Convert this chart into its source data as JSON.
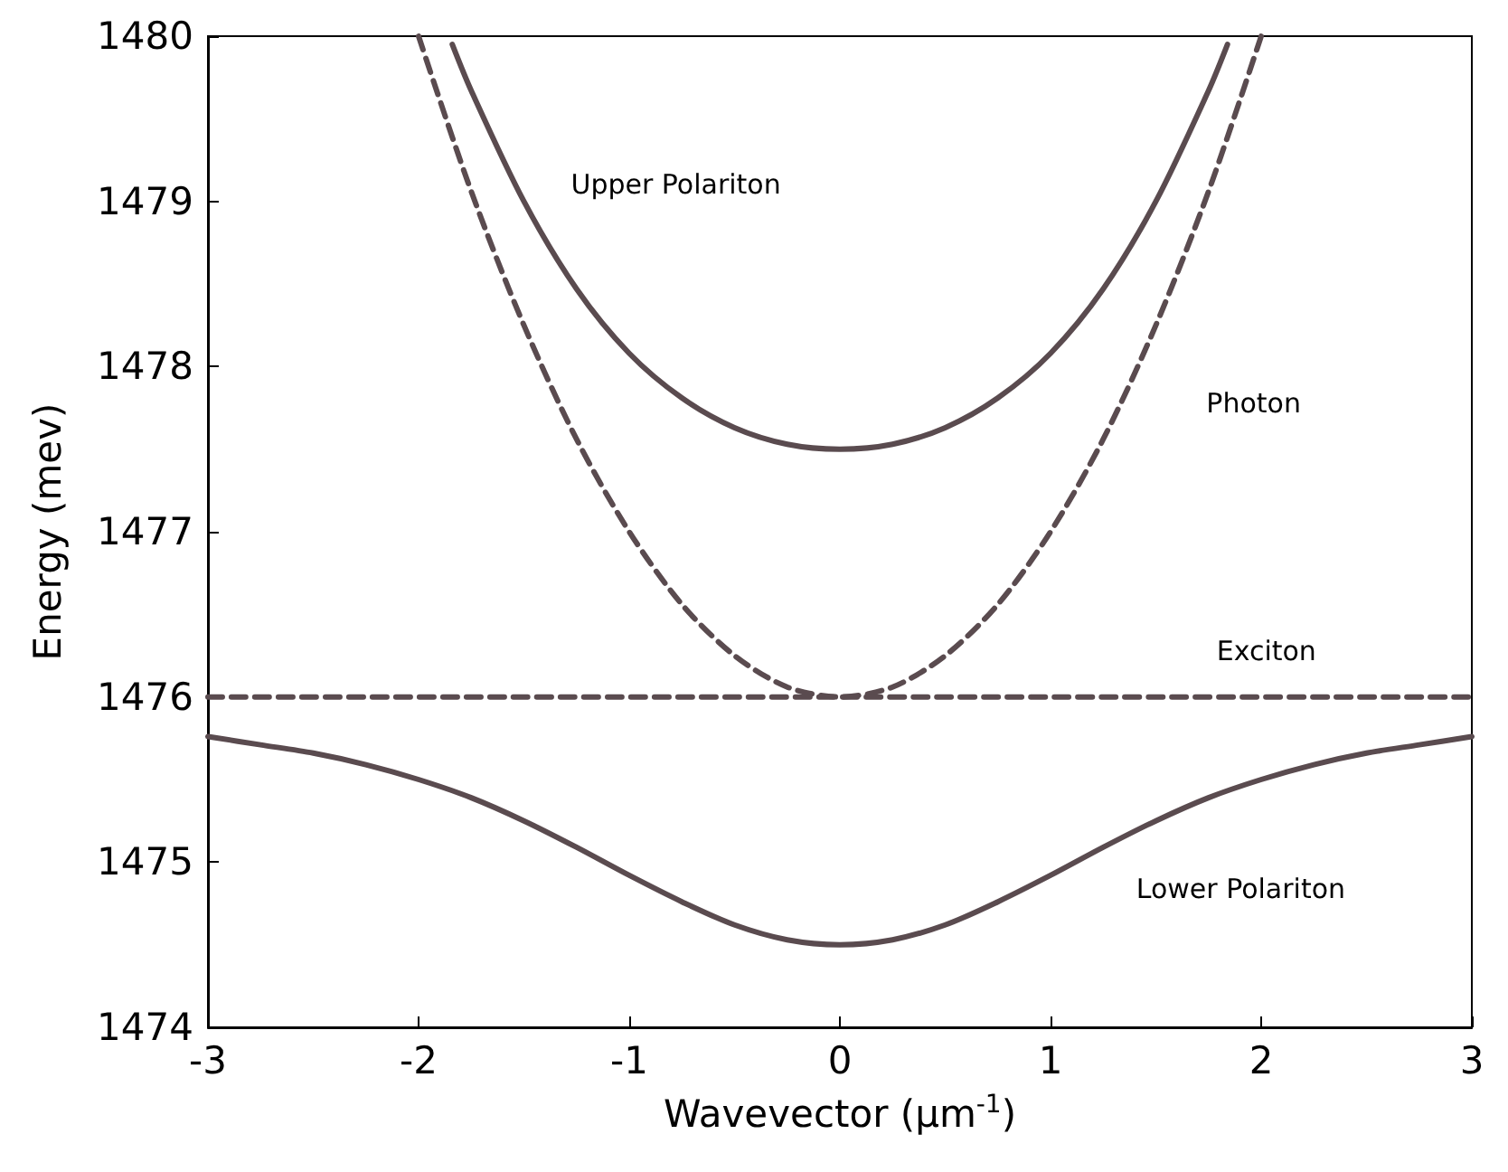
{
  "chart_data": {
    "type": "line",
    "xlabel": "Wavevector (μm$^{-1}$)",
    "ylabel": "Energy (mev)",
    "xlim": [
      -3,
      3
    ],
    "xticks": [
      -3,
      -2,
      -1,
      0,
      1,
      2,
      3
    ],
    "ylim": [
      1474,
      1480
    ],
    "yticks": [
      1474,
      1475,
      1476,
      1477,
      1478,
      1479,
      1480
    ],
    "grid": false,
    "legend": false,
    "series": [
      {
        "name": "Lower Polariton",
        "color": "#5a4b4f",
        "line_style": "solid",
        "x": [
          -3,
          -2.75,
          -2.5,
          -2.25,
          -2,
          -1.75,
          -1.5,
          -1.25,
          -1,
          -0.75,
          -0.5,
          -0.25,
          0,
          0.25,
          0.5,
          0.75,
          1,
          1.25,
          1.5,
          1.75,
          2,
          2.25,
          2.5,
          2.75,
          3
        ],
        "values": [
          1475.76,
          1475.71,
          1475.66,
          1475.59,
          1475.5,
          1475.39,
          1475.25,
          1475.09,
          1474.92,
          1474.76,
          1474.62,
          1474.53,
          1474.5,
          1474.53,
          1474.62,
          1474.76,
          1474.92,
          1475.09,
          1475.25,
          1475.39,
          1475.5,
          1475.59,
          1475.66,
          1475.71,
          1475.76
        ]
      },
      {
        "name": "Upper Polariton",
        "color": "#5a4b4f",
        "line_style": "solid",
        "x": [
          -1.84,
          -1.75,
          -1.5,
          -1.25,
          -1,
          -0.75,
          -0.5,
          -0.25,
          0,
          0.25,
          0.5,
          0.75,
          1,
          1.25,
          1.5,
          1.75,
          1.84
        ],
        "values": [
          1479.95,
          1479.67,
          1479.0,
          1478.47,
          1478.08,
          1477.81,
          1477.63,
          1477.53,
          1477.5,
          1477.53,
          1477.63,
          1477.81,
          1478.08,
          1478.47,
          1479.0,
          1479.67,
          1479.95
        ]
      },
      {
        "name": "Photon",
        "color": "#5a4b4f",
        "line_style": "dashed",
        "x": [
          -2,
          -1.75,
          -1.5,
          -1.25,
          -1,
          -0.75,
          -0.5,
          -0.25,
          0,
          0.25,
          0.5,
          0.75,
          1,
          1.25,
          1.5,
          1.75,
          2
        ],
        "values": [
          1480,
          1479.06,
          1478.25,
          1477.56,
          1477,
          1476.56,
          1476.25,
          1476.06,
          1476,
          1476.06,
          1476.25,
          1476.56,
          1477,
          1477.56,
          1478.25,
          1479.06,
          1480
        ]
      },
      {
        "name": "Exciton",
        "color": "#5a4b4f",
        "line_style": "dashed",
        "x": [
          -3,
          3
        ],
        "values": [
          1476,
          1476
        ]
      }
    ]
  }
}
